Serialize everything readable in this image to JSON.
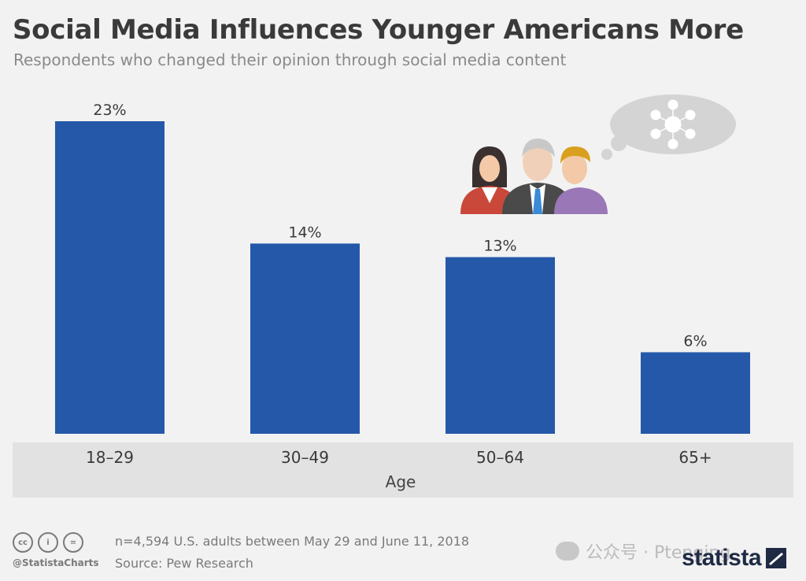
{
  "header": {
    "title": "Social Media Influences Younger Americans More",
    "subtitle": "Respondents who changed their opinion through social media content"
  },
  "chart_data": {
    "type": "bar",
    "title": "Social Media Influences Younger Americans More",
    "subtitle": "Respondents who changed their opinion through social media content",
    "xlabel": "Age",
    "ylabel": "",
    "categories": [
      "18–29",
      "30–49",
      "50–64",
      "65+"
    ],
    "values": [
      23,
      14,
      13,
      6
    ],
    "value_labels": [
      "23%",
      "14%",
      "13%",
      "6%"
    ],
    "unit": "%",
    "ylim": [
      0,
      23
    ],
    "grid": false,
    "legend": "none",
    "bar_color": "#2558a8",
    "axis_band_color": "#e2e2e2"
  },
  "illustration": {
    "icons": [
      "people-group-icon",
      "thought-bubble-icon",
      "network-icon"
    ]
  },
  "footer": {
    "license_icons": [
      "cc-icon",
      "by-icon",
      "nd-icon"
    ],
    "license_labels": [
      "cc",
      "i",
      "="
    ],
    "handle": "@StatistaCharts",
    "note": "n=4,594 U.S. adults between May 29 and June 11, 2018",
    "source": "Source: Pew Research",
    "watermark": "公众号 · Ptenging",
    "logo": "statista"
  }
}
